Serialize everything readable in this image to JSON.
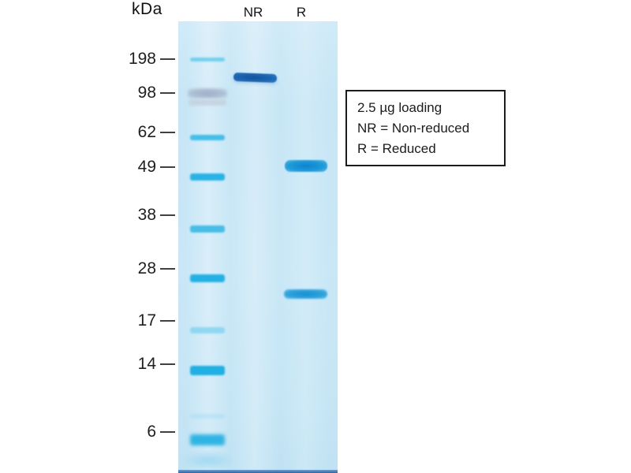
{
  "figure": {
    "axis_unit_label": "kDa",
    "lanes": [
      {
        "label": "NR"
      },
      {
        "label": "R"
      }
    ],
    "ladder": {
      "marks": [
        {
          "label": "198"
        },
        {
          "label": "98"
        },
        {
          "label": "62"
        },
        {
          "label": "49"
        },
        {
          "label": "38"
        },
        {
          "label": "28"
        },
        {
          "label": "17"
        },
        {
          "label": "14"
        },
        {
          "label": "6"
        }
      ]
    },
    "legend": {
      "lines": [
        "2.5 µg loading",
        "NR = Non-reduced",
        "R = Reduced"
      ]
    },
    "gel_bands": {
      "ladder_kda": [
        198,
        98,
        62,
        49,
        38,
        28,
        17,
        14,
        6
      ],
      "nr_lane": [
        "single dark band just above the 98 kDa marker (~110 kDa)"
      ],
      "r_lane": [
        "band at the 49 kDa marker",
        "band between the 28 and 17 kDa markers (~21 kDa)"
      ]
    },
    "colors": {
      "gel_background": "#c8e6f5",
      "ladder_band_cyan": "#27b3e7",
      "marker_98_gray": "#a9b9cf",
      "nr_band_blue": "#1b66b4",
      "r_band_blue": "#1090d6",
      "dye_front_navy": "#2a66aa",
      "legend_border": "#1b1b1b",
      "text": "#1f1f1f"
    }
  }
}
